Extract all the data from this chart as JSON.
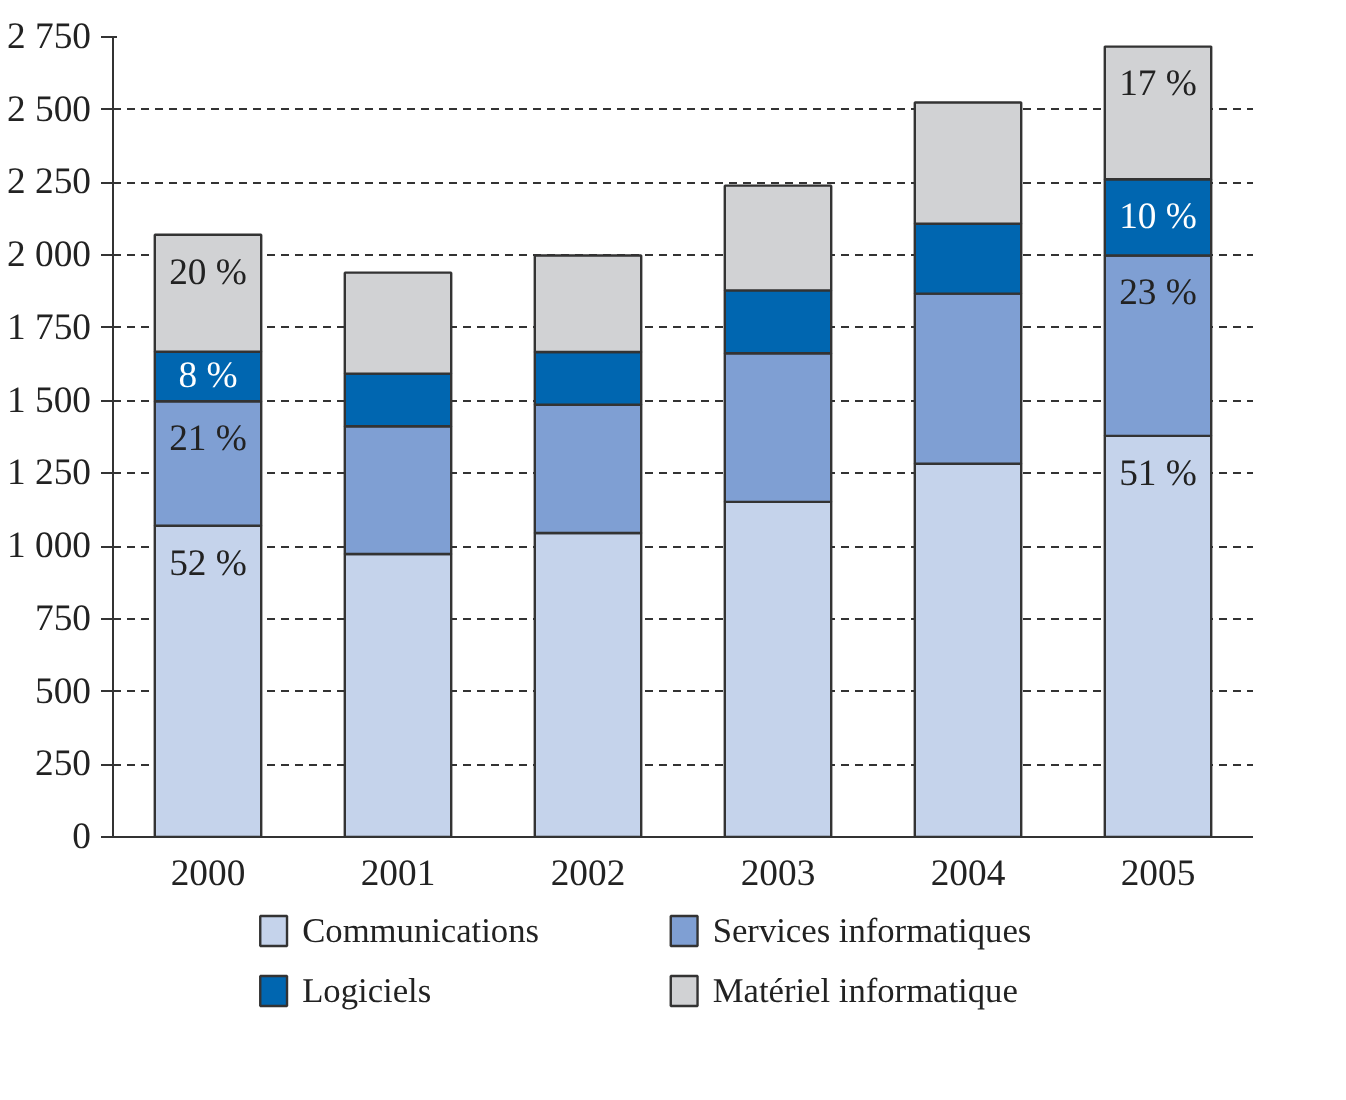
{
  "chart_data": {
    "type": "bar",
    "stacked": true,
    "categories": [
      "2000",
      "2001",
      "2002",
      "2003",
      "2004",
      "2005"
    ],
    "series": [
      {
        "name": "Communications",
        "color": "#c5d3eb",
        "values": [
          1070,
          973,
          1045,
          1152,
          1283,
          1379
        ]
      },
      {
        "name": "Services informatiques",
        "color": "#7f9fd3",
        "values": [
          428,
          439,
          441,
          511,
          585,
          620
        ]
      },
      {
        "name": "Logiciels",
        "color": "#0066b0",
        "values": [
          170,
          181,
          181,
          216,
          240,
          262
        ]
      },
      {
        "name": "Matériel informatique",
        "color": "#d1d2d4",
        "values": [
          402,
          347,
          332,
          360,
          417,
          456
        ]
      }
    ],
    "annotations": [
      {
        "text": "52 %",
        "x": "2000",
        "y": 1070
      },
      {
        "text": "21 %",
        "x": "2000",
        "y": 1498
      },
      {
        "text": "8 %",
        "x": "2000",
        "y": 1668
      },
      {
        "text": "20 %",
        "x": "2000",
        "y": 2070
      },
      {
        "text": "51 %",
        "x": "2005",
        "y": 1379
      },
      {
        "text": "23 %",
        "x": "2005",
        "y": 1999
      },
      {
        "text": "10 %",
        "x": "2005",
        "y": 2261
      },
      {
        "text": "17 %",
        "x": "2005",
        "y": 2717
      }
    ],
    "ylim": [
      0,
      2750
    ],
    "yticks": [
      0,
      250,
      500,
      750,
      {
        "value": 1000,
        "label": "1 000"
      },
      {
        "value": 1250,
        "label": "1 250"
      },
      {
        "value": 1500,
        "label": "1 500"
      },
      {
        "value": 1750,
        "label": "1 750"
      },
      {
        "value": 2000,
        "label": "2 000"
      },
      {
        "value": 2250,
        "label": "2 250"
      },
      {
        "value": 2500,
        "label": "2 500"
      },
      {
        "value": 2750,
        "label": "2 750"
      }
    ],
    "grid": "y",
    "legend": "bottom"
  }
}
